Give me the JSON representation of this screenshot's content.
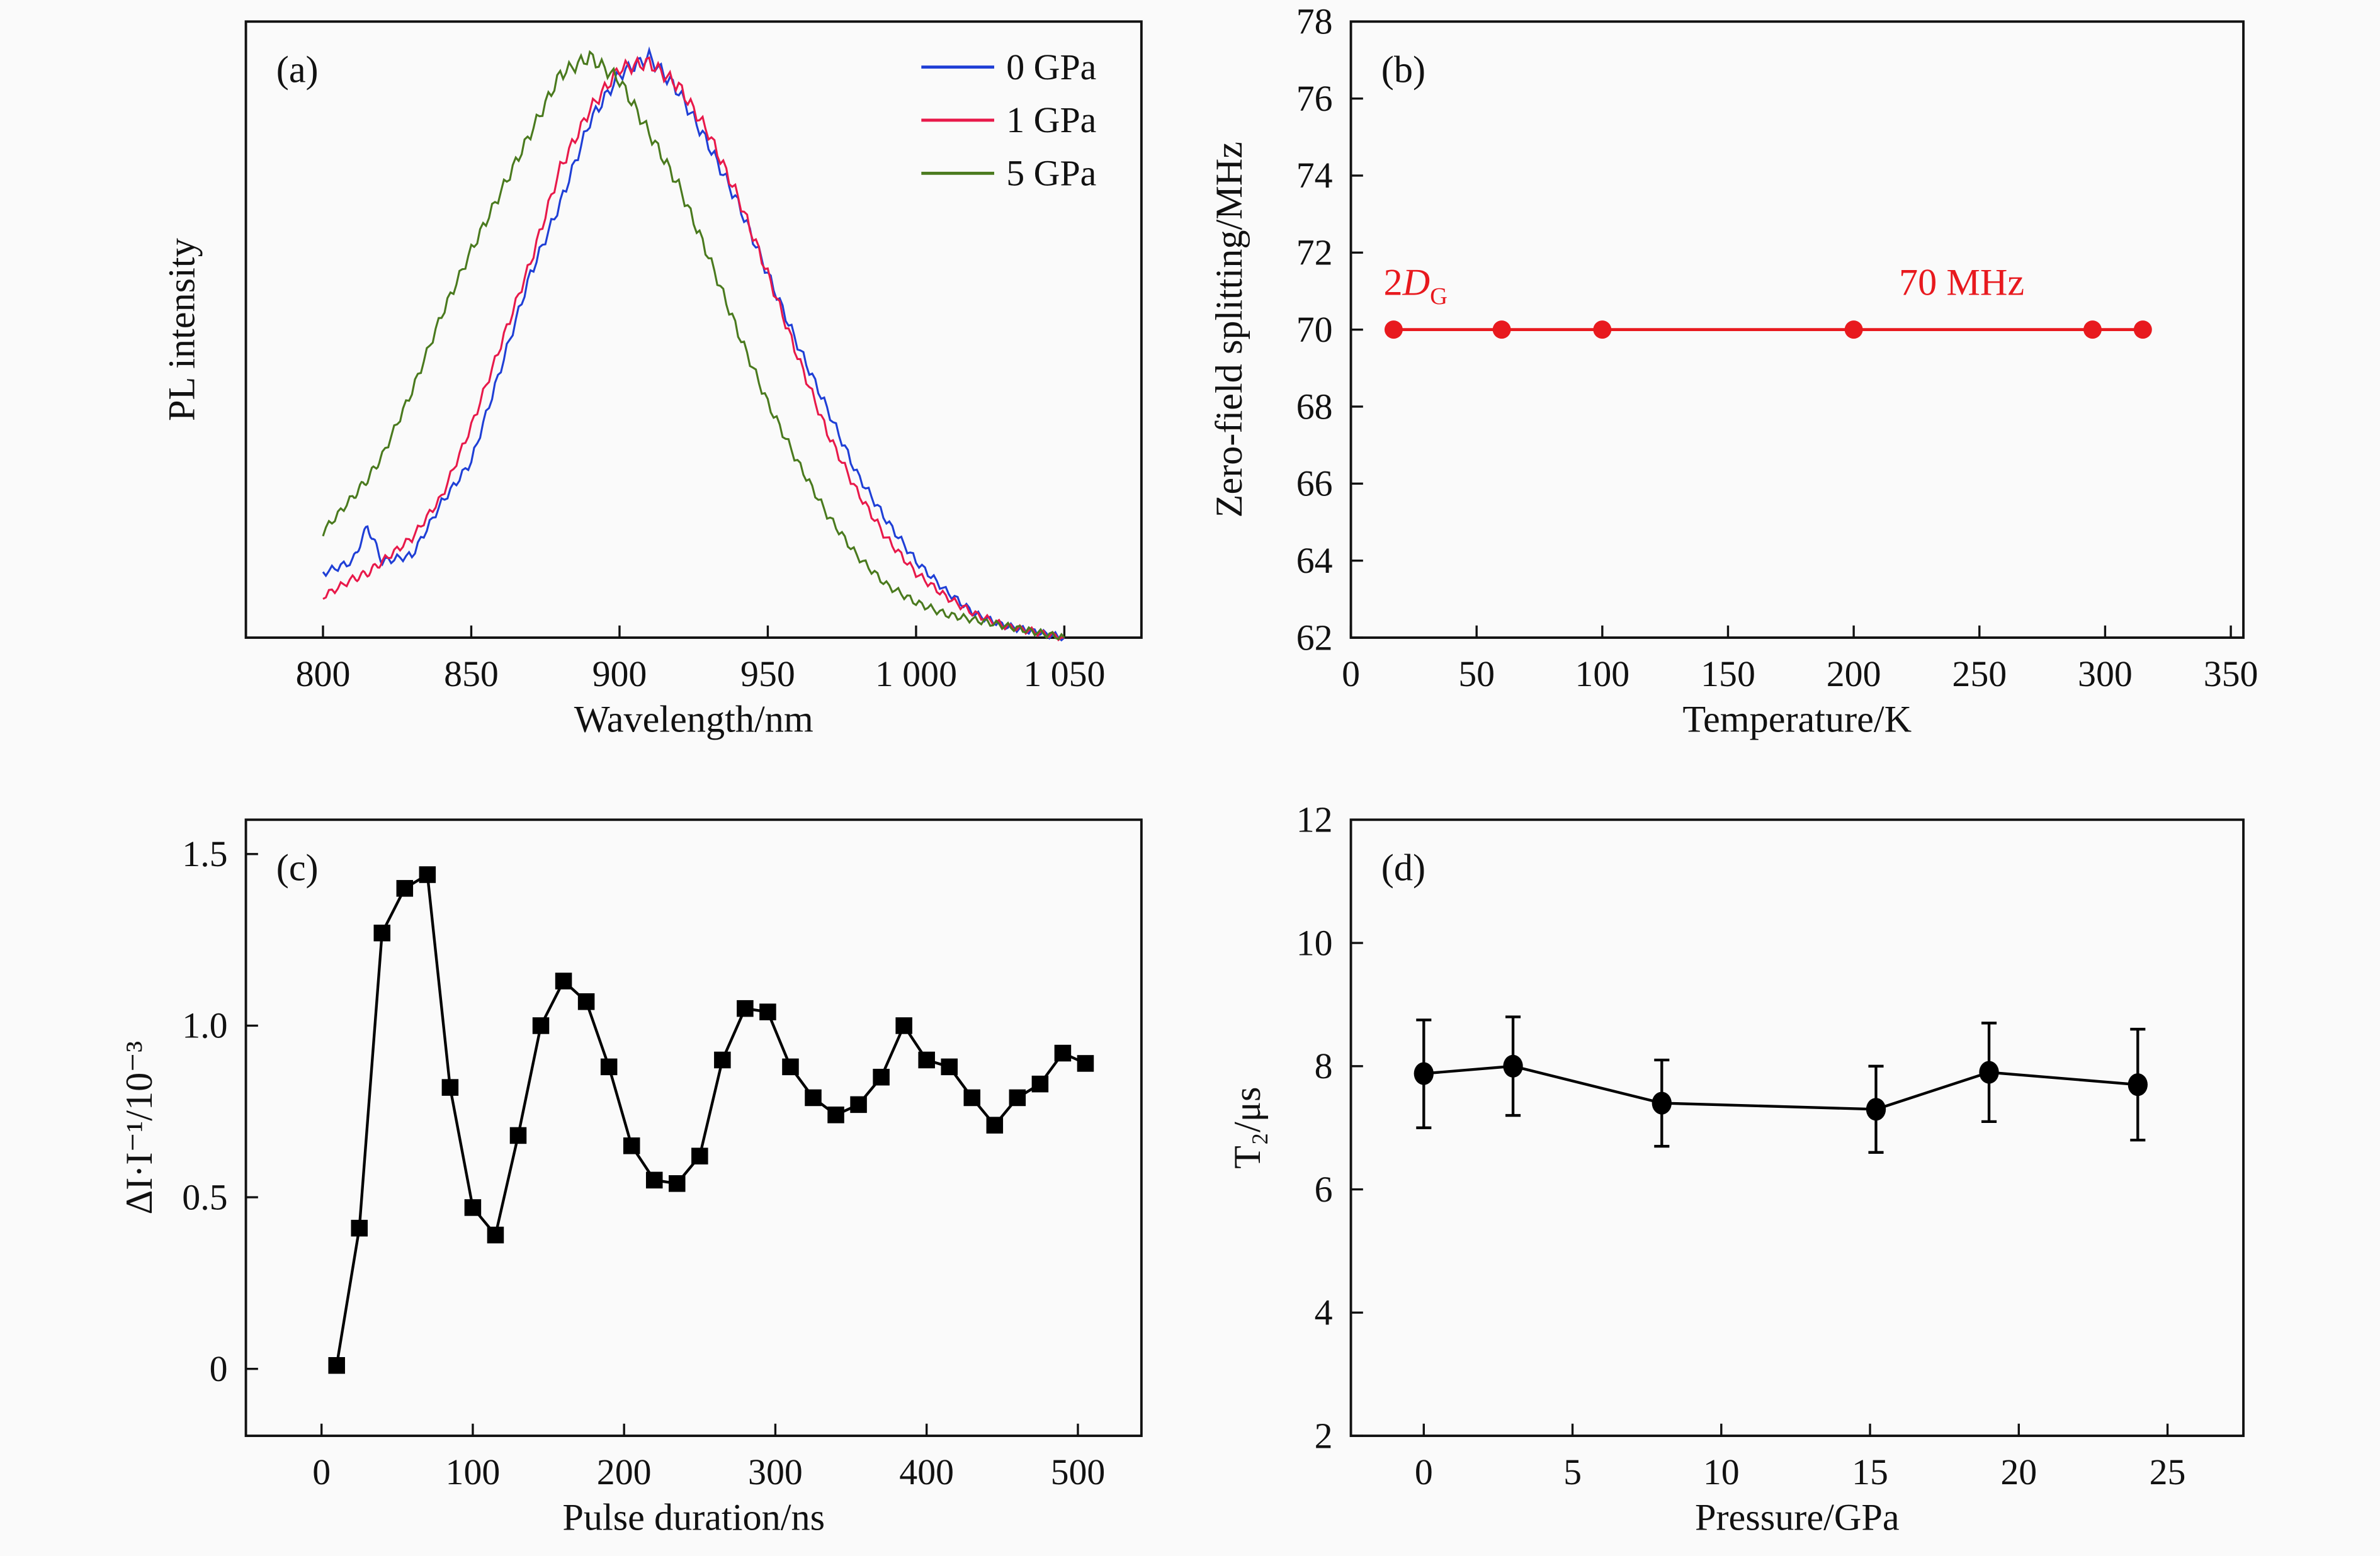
{
  "chart_data": [
    {
      "panel": "(a)",
      "type": "line",
      "xlabel": "Wavelength/nm",
      "ylabel": "PL intensity",
      "xlim": [
        774,
        1076
      ],
      "ylim": [
        0,
        1.05
      ],
      "xticks": [
        800,
        850,
        900,
        950,
        1000,
        1050
      ],
      "xtick_labels": [
        "800",
        "850",
        "900",
        "950",
        "1 000",
        "1 050"
      ],
      "yticks": [],
      "legend": "top-right",
      "x": [
        800,
        810,
        815,
        820,
        830,
        840,
        850,
        860,
        870,
        880,
        890,
        900,
        910,
        920,
        930,
        940,
        950,
        960,
        970,
        980,
        990,
        1000,
        1010,
        1020,
        1030,
        1040,
        1050
      ],
      "series": [
        {
          "name": "0 GPa",
          "color": "#1f3fd6",
          "values": [
            0.11,
            0.13,
            0.19,
            0.13,
            0.14,
            0.23,
            0.3,
            0.46,
            0.62,
            0.74,
            0.88,
            0.96,
            0.99,
            0.93,
            0.84,
            0.74,
            0.62,
            0.5,
            0.39,
            0.28,
            0.2,
            0.13,
            0.08,
            0.04,
            0.02,
            0.01,
            0.0
          ]
        },
        {
          "name": "1 GPa",
          "color": "#e8194a",
          "values": [
            0.07,
            0.1,
            0.11,
            0.13,
            0.17,
            0.24,
            0.36,
            0.5,
            0.64,
            0.8,
            0.9,
            0.97,
            0.98,
            0.94,
            0.86,
            0.75,
            0.62,
            0.48,
            0.35,
            0.25,
            0.17,
            0.11,
            0.07,
            0.04,
            0.02,
            0.01,
            0.0
          ]
        },
        {
          "name": "5 GPa",
          "color": "#4a7a1e",
          "values": [
            0.18,
            0.24,
            0.27,
            0.31,
            0.42,
            0.55,
            0.66,
            0.76,
            0.86,
            0.96,
            0.99,
            0.95,
            0.86,
            0.77,
            0.65,
            0.52,
            0.4,
            0.3,
            0.21,
            0.14,
            0.09,
            0.06,
            0.04,
            0.03,
            0.02,
            0.01,
            0.0
          ]
        }
      ]
    },
    {
      "panel": "(b)",
      "type": "line",
      "xlabel": "Temperature/K",
      "ylabel": "Zero-field splitting/MHz",
      "xlim": [
        0,
        355
      ],
      "ylim": [
        62,
        78
      ],
      "xticks": [
        0,
        50,
        100,
        150,
        200,
        250,
        300,
        350
      ],
      "xtick_labels": [
        "0",
        "50",
        "100",
        "150",
        "200",
        "250",
        "300",
        "350"
      ],
      "yticks": [
        62,
        64,
        66,
        68,
        70,
        72,
        74,
        76,
        78
      ],
      "ytick_labels": [
        "62",
        "64",
        "66",
        "68",
        "70",
        "72",
        "74",
        "76",
        "78"
      ],
      "color": "#e8191e",
      "x": [
        17,
        60,
        100,
        200,
        295,
        315
      ],
      "values": [
        70,
        70,
        70,
        70,
        70,
        70
      ],
      "annotations": [
        {
          "text": "2D",
          "sub": "G",
          "at": [
            13,
            70.9
          ]
        },
        {
          "text": "70 MHz",
          "sub": "",
          "at": [
            218,
            70.9
          ]
        }
      ]
    },
    {
      "panel": "(c)",
      "type": "line",
      "marker": "square",
      "xlabel": "Pulse duration/ns",
      "ylabel": "ΔI·I⁻¹/10⁻³",
      "xlim": [
        -50,
        542
      ],
      "ylim": [
        -0.195,
        1.6
      ],
      "xticks": [
        0,
        100,
        200,
        300,
        400,
        500
      ],
      "xtick_labels": [
        "0",
        "100",
        "200",
        "300",
        "400",
        "500"
      ],
      "yticks": [
        0,
        0.5,
        1.0,
        1.5
      ],
      "ytick_labels": [
        "0",
        "0.5",
        "1.0",
        "1.5"
      ],
      "color": "#000000",
      "x": [
        10,
        25,
        40,
        55,
        70,
        85,
        100,
        115,
        130,
        145,
        160,
        175,
        190,
        205,
        220,
        235,
        250,
        265,
        280,
        295,
        310,
        325,
        340,
        355,
        370,
        385,
        400,
        415,
        430,
        445,
        460,
        475,
        490,
        505
      ],
      "values": [
        0.01,
        0.41,
        1.27,
        1.4,
        1.44,
        0.82,
        0.47,
        0.39,
        0.68,
        1.0,
        1.13,
        1.07,
        0.88,
        0.65,
        0.55,
        0.54,
        0.62,
        0.9,
        1.05,
        1.04,
        0.88,
        0.79,
        0.74,
        0.77,
        0.85,
        1.0,
        0.9,
        0.88,
        0.79,
        0.71,
        0.79,
        0.83,
        0.92,
        0.89
      ]
    },
    {
      "panel": "(d)",
      "type": "line",
      "marker": "circle",
      "xlabel": "Pressure/GPa",
      "ylabel": "T₂/μs",
      "xlim": [
        -2.45,
        27.55
      ],
      "ylim": [
        2,
        12
      ],
      "xticks": [
        0,
        5,
        10,
        15,
        20,
        25
      ],
      "xtick_labels": [
        "0",
        "5",
        "10",
        "15",
        "20",
        "25"
      ],
      "yticks": [
        2,
        4,
        6,
        8,
        10,
        12
      ],
      "ytick_labels": [
        "2",
        "4",
        "6",
        "8",
        "10",
        "12"
      ],
      "color": "#000000",
      "x": [
        0,
        3,
        8,
        15.2,
        19,
        24
      ],
      "values": [
        7.88,
        8.0,
        7.4,
        7.3,
        7.9,
        7.7
      ],
      "err_low": [
        7.0,
        7.2,
        6.7,
        6.6,
        7.1,
        6.8
      ],
      "err_high": [
        8.75,
        8.8,
        8.1,
        8.0,
        8.7,
        8.6
      ]
    }
  ]
}
